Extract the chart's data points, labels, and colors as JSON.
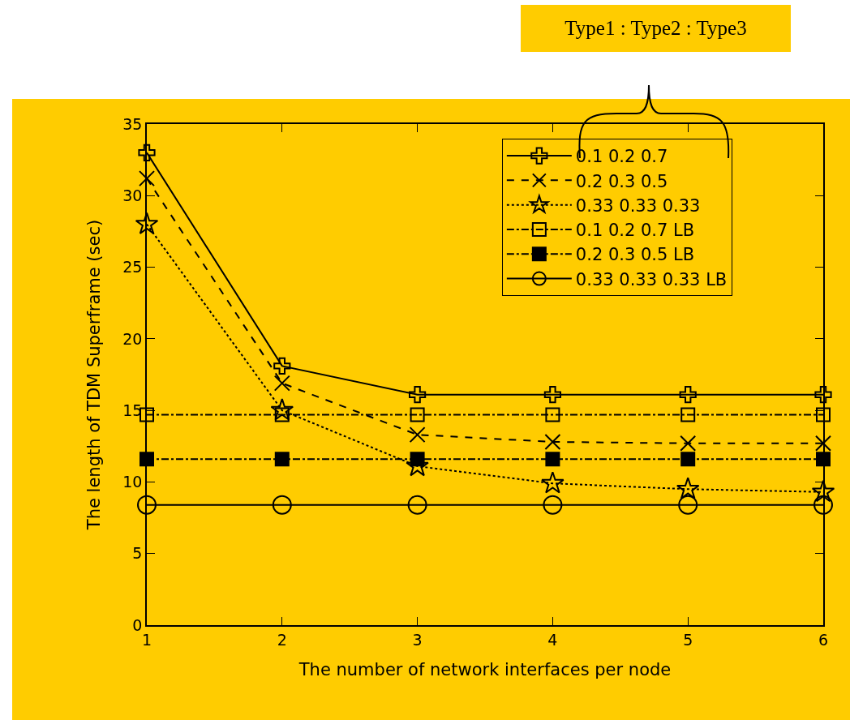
{
  "chart_data": {
    "type": "line",
    "xlabel": "The number of network interfaces per node",
    "ylabel": "The length of TDM Superframe (sec)",
    "legend_title": "Type1 : Type2 : Type3",
    "x": [
      1,
      2,
      3,
      4,
      5,
      6
    ],
    "xlim": [
      1,
      6
    ],
    "xticks": [
      1,
      2,
      3,
      4,
      5,
      6
    ],
    "ylim": [
      0,
      35
    ],
    "yticks": [
      0,
      5,
      10,
      15,
      20,
      25,
      30,
      35
    ],
    "grid": false,
    "legend": "top right",
    "series": [
      {
        "name": "0.1 0.2 0.7",
        "color": "#000000",
        "marker": "cross",
        "line_style": "solid",
        "values": [
          33.0,
          18.1,
          16.1,
          16.1,
          16.1,
          16.1
        ]
      },
      {
        "name": "0.2 0.3 0.5",
        "color": "#000000",
        "marker": "x",
        "line_style": "dashed",
        "values": [
          31.2,
          16.9,
          13.3,
          12.8,
          12.7,
          12.7
        ]
      },
      {
        "name": "0.33 0.33 0.33",
        "color": "#000000",
        "marker": "star",
        "line_style": "dotted",
        "values": [
          28.0,
          15.0,
          11.1,
          9.9,
          9.5,
          9.3
        ]
      },
      {
        "name": "0.1 0.2 0.7 LB",
        "color": "#000000",
        "marker": "square-open",
        "line_style": "dashdot",
        "values": [
          14.7,
          14.7,
          14.7,
          14.7,
          14.7,
          14.7
        ]
      },
      {
        "name": "0.2 0.3 0.5 LB",
        "color": "#000000",
        "marker": "square",
        "line_style": "dashdot",
        "values": [
          11.6,
          11.6,
          11.6,
          11.6,
          11.6,
          11.6
        ]
      },
      {
        "name": "0.33 0.33 0.33 LB",
        "color": "#000000",
        "marker": "circle-open",
        "line_style": "solid",
        "values": [
          8.4,
          8.4,
          8.4,
          8.4,
          8.4,
          8.4
        ]
      }
    ]
  }
}
